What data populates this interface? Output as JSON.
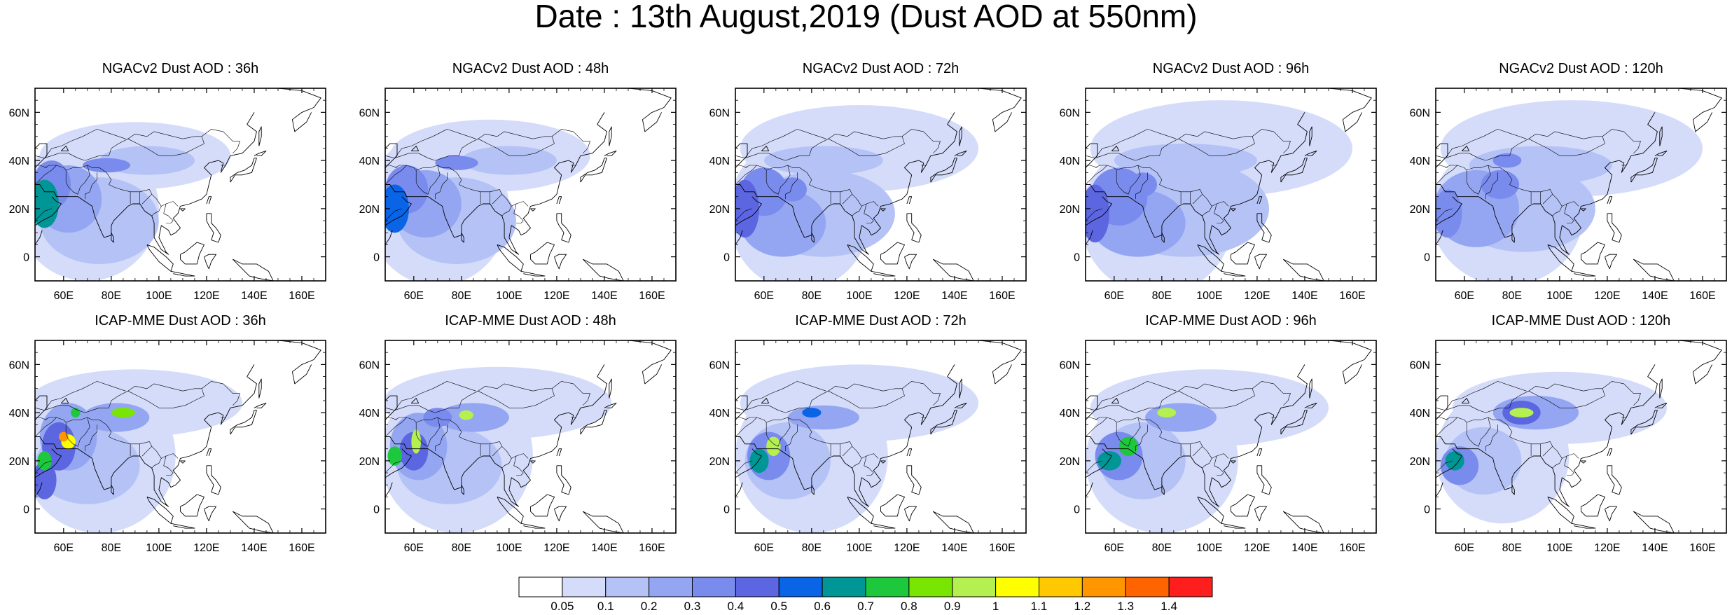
{
  "figure": {
    "title": "Date : 13th August,2019 (Dust AOD at 550nm)"
  },
  "axes": {
    "lon_ticks": [
      "60E",
      "80E",
      "100E",
      "120E",
      "140E",
      "160E"
    ],
    "lat_ticks": [
      "60N",
      "40N",
      "20N",
      "0"
    ],
    "lon_range": [
      48,
      170
    ],
    "lat_range": [
      -10,
      70
    ]
  },
  "panels": [
    {
      "title": "NGACv2 Dust AOD : 36h",
      "model": "NGACv2",
      "lead": "36h",
      "blobs": [
        {
          "lon": 52,
          "lat": 22,
          "rx": 6,
          "ry": 10,
          "level": 7
        },
        {
          "lon": 55,
          "lat": 30,
          "rx": 8,
          "ry": 10,
          "level": 4
        },
        {
          "lon": 62,
          "lat": 24,
          "rx": 14,
          "ry": 14,
          "level": 3
        },
        {
          "lon": 78,
          "lat": 38,
          "rx": 10,
          "ry": 3,
          "level": 4
        },
        {
          "lon": 95,
          "lat": 40,
          "rx": 20,
          "ry": 6,
          "level": 2
        },
        {
          "lon": 75,
          "lat": 15,
          "rx": 25,
          "ry": 18,
          "level": 2
        },
        {
          "lon": 90,
          "lat": 42,
          "rx": 40,
          "ry": 14,
          "level": 1
        },
        {
          "lon": 70,
          "lat": 20,
          "rx": 30,
          "ry": 30,
          "level": 1
        }
      ]
    },
    {
      "title": "NGACv2 Dust AOD : 48h",
      "model": "NGACv2",
      "lead": "48h",
      "blobs": [
        {
          "lon": 52,
          "lat": 20,
          "rx": 6,
          "ry": 10,
          "level": 6
        },
        {
          "lon": 57,
          "lat": 28,
          "rx": 9,
          "ry": 10,
          "level": 4
        },
        {
          "lon": 65,
          "lat": 22,
          "rx": 15,
          "ry": 14,
          "level": 3
        },
        {
          "lon": 78,
          "lat": 39,
          "rx": 9,
          "ry": 3,
          "level": 4
        },
        {
          "lon": 100,
          "lat": 40,
          "rx": 20,
          "ry": 6,
          "level": 2
        },
        {
          "lon": 78,
          "lat": 15,
          "rx": 25,
          "ry": 18,
          "level": 2
        },
        {
          "lon": 92,
          "lat": 42,
          "rx": 42,
          "ry": 15,
          "level": 1
        },
        {
          "lon": 70,
          "lat": 20,
          "rx": 30,
          "ry": 32,
          "level": 1
        }
      ]
    },
    {
      "title": "NGACv2 Dust AOD : 72h",
      "model": "NGACv2",
      "lead": "72h",
      "blobs": [
        {
          "lon": 52,
          "lat": 20,
          "rx": 6,
          "ry": 12,
          "level": 5
        },
        {
          "lon": 60,
          "lat": 27,
          "rx": 10,
          "ry": 10,
          "level": 4
        },
        {
          "lon": 72,
          "lat": 28,
          "rx": 6,
          "ry": 5,
          "level": 4
        },
        {
          "lon": 68,
          "lat": 14,
          "rx": 18,
          "ry": 14,
          "level": 3
        },
        {
          "lon": 85,
          "lat": 40,
          "rx": 25,
          "ry": 6,
          "level": 2
        },
        {
          "lon": 85,
          "lat": 18,
          "rx": 30,
          "ry": 18,
          "level": 2
        },
        {
          "lon": 100,
          "lat": 45,
          "rx": 50,
          "ry": 18,
          "level": 1
        },
        {
          "lon": 75,
          "lat": 18,
          "rx": 30,
          "ry": 32,
          "level": 1
        }
      ]
    },
    {
      "title": "NGACv2 Dust AOD : 96h",
      "model": "NGACv2",
      "lead": "96h",
      "blobs": [
        {
          "lon": 52,
          "lat": 18,
          "rx": 6,
          "ry": 12,
          "level": 5
        },
        {
          "lon": 62,
          "lat": 25,
          "rx": 12,
          "ry": 12,
          "level": 4
        },
        {
          "lon": 72,
          "lat": 30,
          "rx": 6,
          "ry": 5,
          "level": 4
        },
        {
          "lon": 70,
          "lat": 14,
          "rx": 20,
          "ry": 14,
          "level": 3
        },
        {
          "lon": 90,
          "lat": 40,
          "rx": 30,
          "ry": 7,
          "level": 2
        },
        {
          "lon": 90,
          "lat": 20,
          "rx": 35,
          "ry": 20,
          "level": 2
        },
        {
          "lon": 105,
          "lat": 45,
          "rx": 55,
          "ry": 20,
          "level": 1
        },
        {
          "lon": 78,
          "lat": 16,
          "rx": 32,
          "ry": 32,
          "level": 1
        }
      ]
    },
    {
      "title": "NGACv2 Dust AOD : 120h",
      "model": "NGACv2",
      "lead": "120h",
      "blobs": [
        {
          "lon": 53,
          "lat": 18,
          "rx": 6,
          "ry": 10,
          "level": 4
        },
        {
          "lon": 75,
          "lat": 30,
          "rx": 8,
          "ry": 6,
          "level": 4
        },
        {
          "lon": 78,
          "lat": 40,
          "rx": 6,
          "ry": 3,
          "level": 4
        },
        {
          "lon": 65,
          "lat": 20,
          "rx": 18,
          "ry": 16,
          "level": 3
        },
        {
          "lon": 92,
          "lat": 38,
          "rx": 30,
          "ry": 8,
          "level": 2
        },
        {
          "lon": 85,
          "lat": 20,
          "rx": 30,
          "ry": 18,
          "level": 2
        },
        {
          "lon": 105,
          "lat": 45,
          "rx": 55,
          "ry": 20,
          "level": 1
        },
        {
          "lon": 78,
          "lat": 18,
          "rx": 32,
          "ry": 30,
          "level": 1
        }
      ]
    },
    {
      "title": "ICAP-MME Dust AOD : 36h",
      "model": "ICAP-MME",
      "lead": "36h",
      "blobs": [
        {
          "lon": 60,
          "lat": 30,
          "rx": 2,
          "ry": 2,
          "level": 13
        },
        {
          "lon": 62,
          "lat": 28,
          "rx": 3,
          "ry": 3,
          "level": 11
        },
        {
          "lon": 52,
          "lat": 20,
          "rx": 3,
          "ry": 4,
          "level": 8
        },
        {
          "lon": 65,
          "lat": 40,
          "rx": 2,
          "ry": 2,
          "level": 8
        },
        {
          "lon": 85,
          "lat": 40,
          "rx": 5,
          "ry": 2,
          "level": 9
        },
        {
          "lon": 58,
          "lat": 26,
          "rx": 7,
          "ry": 10,
          "level": 5
        },
        {
          "lon": 52,
          "lat": 12,
          "rx": 5,
          "ry": 8,
          "level": 5
        },
        {
          "lon": 62,
          "lat": 30,
          "rx": 12,
          "ry": 14,
          "level": 3
        },
        {
          "lon": 82,
          "lat": 38,
          "rx": 14,
          "ry": 6,
          "level": 3
        },
        {
          "lon": 70,
          "lat": 18,
          "rx": 22,
          "ry": 16,
          "level": 2
        },
        {
          "lon": 90,
          "lat": 44,
          "rx": 45,
          "ry": 14,
          "level": 1
        },
        {
          "lon": 75,
          "lat": 22,
          "rx": 32,
          "ry": 32,
          "level": 1
        }
      ]
    },
    {
      "title": "ICAP-MME Dust AOD : 48h",
      "model": "ICAP-MME",
      "lead": "48h",
      "blobs": [
        {
          "lon": 61,
          "lat": 28,
          "rx": 2,
          "ry": 5,
          "level": 10
        },
        {
          "lon": 82,
          "lat": 39,
          "rx": 3,
          "ry": 2,
          "level": 10
        },
        {
          "lon": 52,
          "lat": 22,
          "rx": 3,
          "ry": 4,
          "level": 8
        },
        {
          "lon": 60,
          "lat": 24,
          "rx": 6,
          "ry": 8,
          "level": 5
        },
        {
          "lon": 70,
          "lat": 38,
          "rx": 6,
          "ry": 4,
          "level": 4
        },
        {
          "lon": 62,
          "lat": 26,
          "rx": 12,
          "ry": 14,
          "level": 3
        },
        {
          "lon": 85,
          "lat": 38,
          "rx": 15,
          "ry": 6,
          "level": 3
        },
        {
          "lon": 75,
          "lat": 18,
          "rx": 22,
          "ry": 16,
          "level": 2
        },
        {
          "lon": 95,
          "lat": 44,
          "rx": 48,
          "ry": 15,
          "level": 1
        },
        {
          "lon": 78,
          "lat": 22,
          "rx": 32,
          "ry": 32,
          "level": 1
        }
      ]
    },
    {
      "title": "ICAP-MME Dust AOD : 72h",
      "model": "ICAP-MME",
      "lead": "72h",
      "blobs": [
        {
          "lon": 64,
          "lat": 26,
          "rx": 3,
          "ry": 4,
          "level": 10
        },
        {
          "lon": 58,
          "lat": 20,
          "rx": 4,
          "ry": 5,
          "level": 7
        },
        {
          "lon": 80,
          "lat": 40,
          "rx": 4,
          "ry": 2,
          "level": 6
        },
        {
          "lon": 62,
          "lat": 22,
          "rx": 9,
          "ry": 10,
          "level": 4
        },
        {
          "lon": 85,
          "lat": 38,
          "rx": 15,
          "ry": 5,
          "level": 3
        },
        {
          "lon": 70,
          "lat": 20,
          "rx": 18,
          "ry": 16,
          "level": 2
        },
        {
          "lon": 100,
          "lat": 44,
          "rx": 50,
          "ry": 16,
          "level": 1
        },
        {
          "lon": 80,
          "lat": 22,
          "rx": 32,
          "ry": 32,
          "level": 1
        }
      ]
    },
    {
      "title": "ICAP-MME Dust AOD : 96h",
      "model": "ICAP-MME",
      "lead": "96h",
      "blobs": [
        {
          "lon": 82,
          "lat": 40,
          "rx": 4,
          "ry": 2,
          "level": 10
        },
        {
          "lon": 66,
          "lat": 26,
          "rx": 4,
          "ry": 4,
          "level": 8
        },
        {
          "lon": 58,
          "lat": 20,
          "rx": 5,
          "ry": 4,
          "level": 7
        },
        {
          "lon": 62,
          "lat": 22,
          "rx": 10,
          "ry": 10,
          "level": 4
        },
        {
          "lon": 88,
          "lat": 38,
          "rx": 15,
          "ry": 6,
          "level": 3
        },
        {
          "lon": 72,
          "lat": 20,
          "rx": 18,
          "ry": 16,
          "level": 2
        },
        {
          "lon": 100,
          "lat": 42,
          "rx": 50,
          "ry": 16,
          "level": 1
        },
        {
          "lon": 80,
          "lat": 20,
          "rx": 32,
          "ry": 30,
          "level": 1
        }
      ]
    },
    {
      "title": "ICAP-MME Dust AOD : 120h",
      "model": "ICAP-MME",
      "lead": "120h",
      "blobs": [
        {
          "lon": 84,
          "lat": 40,
          "rx": 5,
          "ry": 2,
          "level": 10
        },
        {
          "lon": 56,
          "lat": 20,
          "rx": 4,
          "ry": 4,
          "level": 7
        },
        {
          "lon": 84,
          "lat": 40,
          "rx": 8,
          "ry": 5,
          "level": 5
        },
        {
          "lon": 58,
          "lat": 18,
          "rx": 8,
          "ry": 8,
          "level": 4
        },
        {
          "lon": 90,
          "lat": 40,
          "rx": 18,
          "ry": 7,
          "level": 3
        },
        {
          "lon": 68,
          "lat": 20,
          "rx": 16,
          "ry": 14,
          "level": 2
        },
        {
          "lon": 100,
          "lat": 42,
          "rx": 45,
          "ry": 15,
          "level": 1
        },
        {
          "lon": 76,
          "lat": 22,
          "rx": 28,
          "ry": 28,
          "level": 1
        }
      ]
    }
  ],
  "colorbar": {
    "labels": [
      "0.05",
      "0.1",
      "0.2",
      "0.3",
      "0.4",
      "0.5",
      "0.6",
      "0.7",
      "0.8",
      "0.9",
      "1",
      "1.1",
      "1.2",
      "1.3",
      "1.4"
    ],
    "colors": [
      "#ffffff",
      "#d4dcfa",
      "#b4c2f6",
      "#94a6f2",
      "#7a8bee",
      "#5c66e0",
      "#0a64e6",
      "#009696",
      "#1ec83c",
      "#78e600",
      "#b4f050",
      "#ffff00",
      "#ffc800",
      "#ff9600",
      "#ff6400",
      "#ff1e1e"
    ]
  },
  "land_color": "#000000",
  "projection": "cylindrical equidistant"
}
